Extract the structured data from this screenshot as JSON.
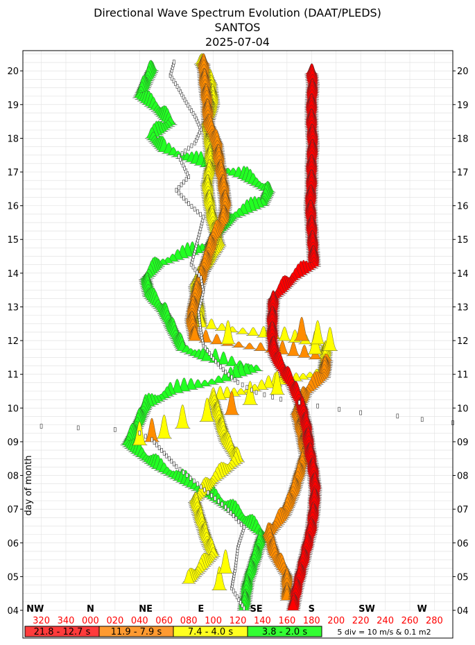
{
  "chart_data": {
    "type": "waterfall-spectrum",
    "title": "Directional Wave Spectrum Evolution (DAAT/PLEDS)",
    "subtitle": "SANTOS",
    "date": "2025-07-04",
    "ylabel": "day of month",
    "ylim": [
      4.0,
      20.6
    ],
    "y_ticks": [
      "04",
      "05",
      "06",
      "07",
      "08",
      "09",
      "10",
      "11",
      "12",
      "13",
      "14",
      "15",
      "16",
      "17",
      "18",
      "19",
      "20"
    ],
    "xlim": [
      305,
      295
    ],
    "x_ticks": [
      "320",
      "340",
      "000",
      "020",
      "040",
      "060",
      "080",
      "100",
      "120",
      "140",
      "160",
      "180",
      "200",
      "220",
      "240",
      "260",
      "280"
    ],
    "compass_labels": [
      {
        "label": "NW",
        "deg": 315
      },
      {
        "label": "N",
        "deg": 0
      },
      {
        "label": "NE",
        "deg": 45
      },
      {
        "label": "E",
        "deg": 90
      },
      {
        "label": "SE",
        "deg": 135
      },
      {
        "label": "S",
        "deg": 180
      },
      {
        "label": "SW",
        "deg": 225
      },
      {
        "label": "W",
        "deg": 270
      }
    ],
    "grid": true,
    "legend_position": "bottom",
    "legend": [
      {
        "label": "21.8 - 12.7 s",
        "color": "#ff3b3b"
      },
      {
        "label": "11.9 - 7.9 s",
        "color": "#ff9a30"
      },
      {
        "label": "7.4 - 4.0 s",
        "color": "#ffff20"
      },
      {
        "label": "3.8 - 2.0 s",
        "color": "#33ff33"
      }
    ],
    "scale_note": "5 div = 10 m/s & 0.1 m2",
    "band_colors": {
      "red": "#ff0000",
      "orange": "#ff8c00",
      "yellow": "#ffff00",
      "green": "#22ff22"
    },
    "series": [
      {
        "band": "red",
        "points": [
          [
            4.0,
            165
          ],
          [
            4.6,
            168
          ],
          [
            5.2,
            172
          ],
          [
            5.8,
            176
          ],
          [
            6.4,
            180
          ],
          [
            7.0,
            182
          ],
          [
            7.6,
            183
          ],
          [
            8.2,
            181
          ],
          [
            8.8,
            178
          ],
          [
            9.4,
            176
          ],
          [
            10.0,
            172
          ],
          [
            10.6,
            165
          ],
          [
            11.0,
            158
          ],
          [
            11.5,
            150
          ],
          [
            12.0,
            148
          ],
          [
            12.6,
            148
          ],
          [
            13.2,
            149
          ],
          [
            13.8,
            165
          ],
          [
            14.2,
            182
          ],
          [
            14.8,
            181
          ],
          [
            15.4,
            180
          ],
          [
            16.0,
            179
          ],
          [
            16.6,
            180
          ],
          [
            17.2,
            180
          ],
          [
            17.8,
            181
          ],
          [
            18.4,
            180
          ],
          [
            19.0,
            180
          ],
          [
            19.6,
            181
          ],
          [
            19.9,
            180
          ]
        ]
      },
      {
        "band": "orange",
        "points": [
          [
            4.3,
            160
          ],
          [
            5.0,
            160
          ],
          [
            5.6,
            150
          ],
          [
            6.2,
            145
          ],
          [
            6.8,
            158
          ],
          [
            7.4,
            165
          ],
          [
            8.0,
            170
          ],
          [
            8.6,
            175
          ],
          [
            9.2,
            172
          ],
          [
            9.8,
            168
          ],
          [
            10.4,
            175
          ],
          [
            10.9,
            190
          ],
          [
            11.4,
            192
          ],
          [
            12.0,
            85
          ],
          [
            12.6,
            82
          ],
          [
            13.2,
            85
          ],
          [
            13.8,
            90
          ],
          [
            14.4,
            95
          ],
          [
            15.0,
            100
          ],
          [
            15.5,
            108
          ],
          [
            16.0,
            110
          ],
          [
            16.6,
            108
          ],
          [
            17.2,
            105
          ],
          [
            17.8,
            103
          ],
          [
            18.4,
            96
          ],
          [
            19.0,
            95
          ],
          [
            19.6,
            93
          ],
          [
            20.2,
            92
          ]
        ]
      },
      {
        "band": "yellow",
        "points": [
          [
            4.8,
            80
          ],
          [
            5.2,
            90
          ],
          [
            5.6,
            100
          ],
          [
            6.0,
            95
          ],
          [
            6.6,
            90
          ],
          [
            7.2,
            85
          ],
          [
            7.8,
            100
          ],
          [
            8.4,
            120
          ],
          [
            9.0,
            110
          ],
          [
            9.6,
            105
          ],
          [
            10.2,
            100
          ],
          [
            11.0,
            190
          ],
          [
            11.8,
            192
          ],
          [
            12.4,
            90
          ],
          [
            13.0,
            88
          ],
          [
            13.6,
            85
          ],
          [
            14.2,
            95
          ],
          [
            14.8,
            105
          ],
          [
            15.4,
            100
          ],
          [
            16.0,
            97
          ],
          [
            16.6,
            95
          ],
          [
            17.2,
            98
          ],
          [
            17.8,
            97
          ],
          [
            18.4,
            95
          ],
          [
            19.0,
            100
          ],
          [
            19.6,
            98
          ],
          [
            20.2,
            90
          ]
        ]
      },
      {
        "band": "green",
        "points": [
          [
            4.0,
            125
          ],
          [
            4.8,
            128
          ],
          [
            5.6,
            135
          ],
          [
            6.2,
            140
          ],
          [
            6.8,
            120
          ],
          [
            7.3,
            100
          ],
          [
            7.8,
            75
          ],
          [
            8.2,
            55
          ],
          [
            8.6,
            40
          ],
          [
            8.9,
            30
          ],
          [
            9.2,
            35
          ],
          [
            9.6,
            40
          ],
          [
            10.0,
            45
          ],
          [
            10.4,
            65
          ],
          [
            10.8,
            110
          ],
          [
            11.1,
            135
          ],
          [
            11.4,
            95
          ],
          [
            11.7,
            75
          ],
          [
            12.2,
            68
          ],
          [
            12.8,
            60
          ],
          [
            13.3,
            48
          ],
          [
            13.8,
            45
          ],
          [
            14.2,
            55
          ],
          [
            14.7,
            95
          ],
          [
            15.2,
            105
          ],
          [
            15.6,
            115
          ],
          [
            16.0,
            140
          ],
          [
            16.4,
            145
          ],
          [
            16.8,
            125
          ],
          [
            17.2,
            90
          ],
          [
            17.6,
            60
          ],
          [
            18.0,
            50
          ],
          [
            18.4,
            65
          ],
          [
            18.8,
            55
          ],
          [
            19.2,
            40
          ],
          [
            19.6,
            45
          ],
          [
            20.0,
            50
          ]
        ]
      },
      {
        "band": "wind",
        "points": [
          [
            4.0,
            125
          ],
          [
            4.6,
            115
          ],
          [
            5.2,
            118
          ],
          [
            5.8,
            120
          ],
          [
            6.4,
            125
          ],
          [
            7.0,
            110
          ],
          [
            7.6,
            90
          ],
          [
            8.2,
            70
          ],
          [
            8.6,
            60
          ],
          [
            9.0,
            50
          ],
          [
            9.2,
            40
          ],
          [
            9.3,
            20
          ],
          [
            9.35,
            350
          ],
          [
            9.4,
            320
          ],
          [
            9.5,
            295
          ],
          [
            9.6,
            270
          ],
          [
            9.7,
            250
          ],
          [
            9.8,
            220
          ],
          [
            10.0,
            185
          ],
          [
            10.2,
            155
          ],
          [
            10.4,
            135
          ],
          [
            10.7,
            120
          ],
          [
            11.0,
            110
          ],
          [
            11.4,
            100
          ],
          [
            11.8,
            92
          ],
          [
            12.2,
            90
          ],
          [
            12.8,
            88
          ],
          [
            13.4,
            92
          ],
          [
            13.8,
            90
          ],
          [
            14.2,
            82
          ],
          [
            14.6,
            85
          ],
          [
            15.0,
            88
          ],
          [
            15.6,
            92
          ],
          [
            16.0,
            80
          ],
          [
            16.4,
            70
          ],
          [
            16.8,
            80
          ],
          [
            17.4,
            72
          ],
          [
            17.8,
            85
          ],
          [
            18.2,
            90
          ],
          [
            18.6,
            85
          ],
          [
            19.0,
            78
          ],
          [
            19.4,
            72
          ],
          [
            19.8,
            65
          ],
          [
            20.2,
            68
          ]
        ]
      },
      {
        "band": "yellow-isolated",
        "points": [
          [
            4.6,
            105
          ],
          [
            5.1,
            110
          ],
          [
            8.9,
            40
          ],
          [
            9.0,
            50
          ],
          [
            9.1,
            60
          ],
          [
            9.4,
            75
          ],
          [
            9.6,
            95
          ],
          [
            9.8,
            115
          ],
          [
            10.1,
            130
          ],
          [
            10.4,
            152
          ],
          [
            11.9,
            112
          ],
          [
            12.0,
            172
          ],
          [
            11.6,
            183
          ],
          [
            11.9,
            185
          ],
          [
            11.7,
            195
          ]
        ]
      }
    ]
  }
}
